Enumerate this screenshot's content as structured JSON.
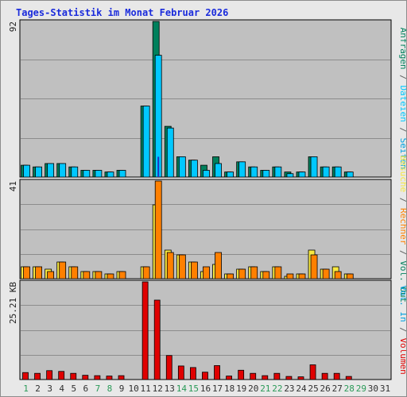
{
  "title": "Tages-Statistik im Monat Februar 2026",
  "colors": {
    "plot_bg": "#c0c0c0",
    "grid": "#8c8c8c",
    "anfragen": "#00805c",
    "dateien": "#00c8ff",
    "seiten": "#00a0e0",
    "besuche": "#f8e840",
    "rechner": "#ff8000",
    "volumen": "#e00000",
    "weekday_label": "#303030",
    "weekend_label": "#2a9a58"
  },
  "chart_data": [
    {
      "type": "bar",
      "panel": "top",
      "y_max_label": "92",
      "ylim": [
        0,
        92
      ],
      "series": [
        {
          "name": "Anfragen",
          "values": [
            7,
            6,
            8,
            8,
            6,
            4,
            4,
            3,
            4,
            0,
            42,
            92,
            30,
            12,
            10,
            7,
            12,
            3,
            9,
            6,
            4,
            6,
            3,
            3,
            12,
            6,
            6,
            3,
            0,
            0,
            0
          ]
        },
        {
          "name": "Dateien",
          "values": [
            7,
            6,
            8,
            8,
            6,
            4,
            4,
            3,
            4,
            0,
            42,
            72,
            29,
            12,
            10,
            4,
            8,
            3,
            9,
            6,
            4,
            6,
            2,
            3,
            12,
            6,
            6,
            3,
            0,
            0,
            0
          ]
        },
        {
          "name": "Seiten",
          "values": [
            0,
            0,
            0,
            0,
            0,
            0,
            0,
            0,
            0,
            0,
            0,
            12,
            0,
            0,
            0,
            0,
            0,
            0,
            0,
            0,
            0,
            0,
            0,
            0,
            0,
            0,
            0,
            0,
            0,
            0,
            0
          ]
        }
      ],
      "right_label_parts": [
        {
          "text": "Anfragen",
          "key": "anfragen"
        },
        {
          "text": " / ",
          "key": "sep"
        },
        {
          "text": "Dateien",
          "key": "dateien"
        },
        {
          "text": " / ",
          "key": "sep"
        },
        {
          "text": "Seiten",
          "key": "seiten"
        }
      ]
    },
    {
      "type": "bar",
      "panel": "middle",
      "y_max_label": "41",
      "ylim": [
        0,
        41
      ],
      "series": [
        {
          "name": "Besuche",
          "values": [
            5,
            5,
            4,
            7,
            5,
            3,
            3,
            2,
            3,
            0,
            5,
            31,
            12,
            10,
            7,
            3,
            6,
            2,
            4,
            5,
            3,
            5,
            1,
            2,
            12,
            4,
            5,
            2,
            0,
            0,
            0
          ]
        },
        {
          "name": "Rechner",
          "values": [
            5,
            5,
            3,
            7,
            5,
            3,
            3,
            2,
            3,
            0,
            5,
            41,
            11,
            10,
            7,
            5,
            11,
            2,
            4,
            5,
            3,
            5,
            2,
            2,
            10,
            4,
            3,
            2,
            0,
            0,
            0
          ]
        }
      ],
      "right_label_parts": [
        {
          "text": "Besuche",
          "key": "besuche"
        },
        {
          "text": " / ",
          "key": "sep"
        },
        {
          "text": "Rechner",
          "key": "rechner"
        },
        {
          "text": " / ",
          "key": "sep"
        },
        {
          "text": "Vol. Out",
          "key": "anfragen"
        }
      ]
    },
    {
      "type": "bar",
      "panel": "bottom",
      "y_max_label": "25.21 KB",
      "ylim": [
        0,
        25.21
      ],
      "series": [
        {
          "name": "Volumen",
          "values": [
            1.8,
            1.6,
            2.3,
            2.1,
            1.6,
            1.1,
            1.0,
            0.9,
            1.0,
            0,
            25.21,
            20.5,
            6.2,
            3.5,
            3.1,
            1.9,
            3.6,
            0.9,
            2.4,
            1.6,
            1.0,
            1.6,
            0.8,
            0.7,
            3.8,
            1.6,
            1.6,
            0.8,
            0,
            0,
            0
          ]
        }
      ],
      "right_label_parts": [
        {
          "text": "Vol. In",
          "key": "seiten"
        },
        {
          "text": " / ",
          "key": "sep"
        },
        {
          "text": "Volumen",
          "key": "volumen"
        }
      ]
    }
  ],
  "x_axis": {
    "categories": [
      "1",
      "2",
      "3",
      "4",
      "5",
      "6",
      "7",
      "8",
      "9",
      "10",
      "11",
      "12",
      "13",
      "14",
      "15",
      "16",
      "17",
      "18",
      "19",
      "20",
      "21",
      "22",
      "23",
      "24",
      "25",
      "26",
      "27",
      "28",
      "29",
      "30",
      "31"
    ],
    "weekend_days": [
      1,
      7,
      8,
      14,
      15,
      21,
      22,
      28,
      29
    ]
  }
}
